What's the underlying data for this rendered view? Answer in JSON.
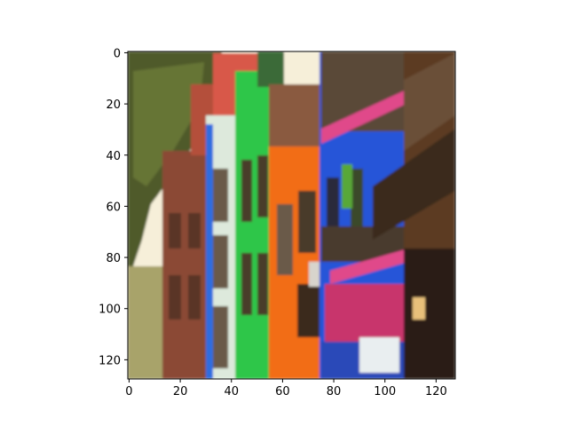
{
  "image": {
    "description_icon": "photo-icon",
    "palette": {
      "sky": "#f6efd9",
      "tree": "#4f5a2a",
      "brick": "#8b4a36",
      "pale": "#dde9dc",
      "blue": "#2f6de0",
      "green": "#2fc64a",
      "orange": "#f26d12",
      "pink": "#e04a8a",
      "dark_wood": "#4a3a28",
      "deep_blue": "#2855d8",
      "brown": "#5c3a24",
      "white_sheet": "#e9eef0"
    }
  },
  "x_axis": {
    "ticks": [
      0,
      20,
      40,
      60,
      80,
      100,
      120
    ],
    "tick_labels": [
      "0",
      "20",
      "40",
      "60",
      "80",
      "100",
      "120"
    ]
  },
  "y_axis": {
    "ticks": [
      0,
      20,
      40,
      60,
      80,
      100,
      120
    ],
    "tick_labels": [
      "0",
      "20",
      "40",
      "60",
      "80",
      "100",
      "120"
    ]
  }
}
